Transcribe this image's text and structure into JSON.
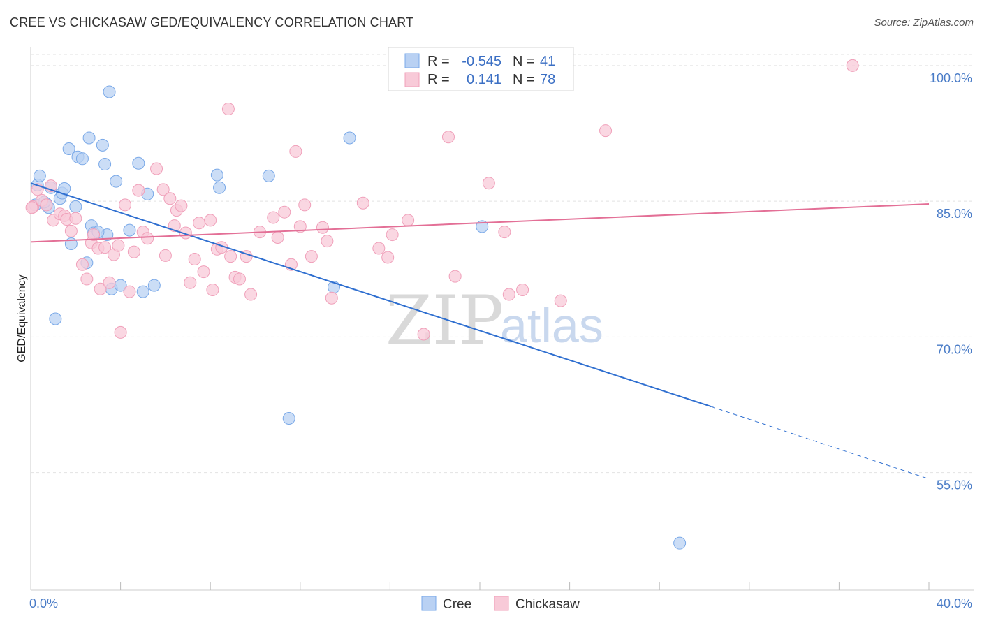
{
  "title": "CREE VS CHICKASAW GED/EQUIVALENCY CORRELATION CHART",
  "source": "Source: ZipAtlas.com",
  "chart_data": {
    "type": "scatter",
    "ylabel": "GED/Equivalency",
    "xlim": [
      0,
      40
    ],
    "ylim": [
      42,
      102
    ],
    "y_ticks": [
      {
        "value": 100,
        "label": "100.0%"
      },
      {
        "value": 85,
        "label": "85.0%"
      },
      {
        "value": 70,
        "label": "70.0%"
      },
      {
        "value": 55,
        "label": "55.0%"
      }
    ],
    "x_tick_labels": {
      "min": "0.0%",
      "max": "40.0%"
    },
    "legend": {
      "r_label": "R =",
      "n_label": "N =",
      "entries": [
        {
          "series": "Cree",
          "r": "-0.545",
          "n": "41"
        },
        {
          "series": "Chickasaw",
          "r": "0.141",
          "n": "78"
        }
      ]
    },
    "watermark": {
      "zip": "ZIP",
      "atlas": "atlas"
    },
    "series": [
      {
        "name": "Cree",
        "color": "#7aa9e8",
        "fill": "#b9d1f3",
        "line_color": "#2f6fd0",
        "trend": {
          "x0": 0,
          "y0": 87.0,
          "x1": 30.3,
          "y1": 62.3,
          "x_dash_end": 40,
          "y_dash_end": 54.3
        },
        "points": [
          [
            0.3,
            86.8
          ],
          [
            0.4,
            87.8
          ],
          [
            0.7,
            84.7
          ],
          [
            0.8,
            84.3
          ],
          [
            0.9,
            86.5
          ],
          [
            1.1,
            72.0
          ],
          [
            1.3,
            85.3
          ],
          [
            1.4,
            85.9
          ],
          [
            1.5,
            86.4
          ],
          [
            1.7,
            90.8
          ],
          [
            1.8,
            80.3
          ],
          [
            2.0,
            84.4
          ],
          [
            2.1,
            89.9
          ],
          [
            2.3,
            89.7
          ],
          [
            2.5,
            78.2
          ],
          [
            2.6,
            92.0
          ],
          [
            2.7,
            82.3
          ],
          [
            2.8,
            81.5
          ],
          [
            3.2,
            91.2
          ],
          [
            3.3,
            89.1
          ],
          [
            3.4,
            81.3
          ],
          [
            3.5,
            97.1
          ],
          [
            3.6,
            75.3
          ],
          [
            3.8,
            87.2
          ],
          [
            4.0,
            75.7
          ],
          [
            4.4,
            81.8
          ],
          [
            4.8,
            89.2
          ],
          [
            5.0,
            75.0
          ],
          [
            5.2,
            85.8
          ],
          [
            5.5,
            75.7
          ],
          [
            8.3,
            87.9
          ],
          [
            8.4,
            86.5
          ],
          [
            10.6,
            87.8
          ],
          [
            11.5,
            61.0
          ],
          [
            13.5,
            75.5
          ],
          [
            14.2,
            92.0
          ],
          [
            20.1,
            82.2
          ],
          [
            28.9,
            47.2
          ],
          [
            0.2,
            84.6
          ],
          [
            0.6,
            84.9
          ],
          [
            3.0,
            81.6
          ]
        ]
      },
      {
        "name": "Chickasaw",
        "color": "#f0a0ba",
        "fill": "#f8cad8",
        "line_color": "#e36f96",
        "trend": {
          "x0": 0,
          "y0": 80.5,
          "x1": 40,
          "y1": 84.7
        },
        "points": [
          [
            0.1,
            84.4
          ],
          [
            0.3,
            86.3
          ],
          [
            0.5,
            85.1
          ],
          [
            0.7,
            84.6
          ],
          [
            0.9,
            86.7
          ],
          [
            1.0,
            82.9
          ],
          [
            1.3,
            83.6
          ],
          [
            1.5,
            83.4
          ],
          [
            1.6,
            83.0
          ],
          [
            1.8,
            81.7
          ],
          [
            2.0,
            83.1
          ],
          [
            2.3,
            78.0
          ],
          [
            2.5,
            76.4
          ],
          [
            2.7,
            80.4
          ],
          [
            2.8,
            81.3
          ],
          [
            3.0,
            79.8
          ],
          [
            3.1,
            75.3
          ],
          [
            3.3,
            79.9
          ],
          [
            3.5,
            76.0
          ],
          [
            3.7,
            79.1
          ],
          [
            3.9,
            80.1
          ],
          [
            4.0,
            70.5
          ],
          [
            4.2,
            84.6
          ],
          [
            4.4,
            75.0
          ],
          [
            4.6,
            79.4
          ],
          [
            4.8,
            86.2
          ],
          [
            5.0,
            81.6
          ],
          [
            5.2,
            80.9
          ],
          [
            5.6,
            88.6
          ],
          [
            5.9,
            86.3
          ],
          [
            6.0,
            79.0
          ],
          [
            6.2,
            85.3
          ],
          [
            6.4,
            82.3
          ],
          [
            6.5,
            84.0
          ],
          [
            6.7,
            84.5
          ],
          [
            6.9,
            81.5
          ],
          [
            7.1,
            76.0
          ],
          [
            7.3,
            78.6
          ],
          [
            7.5,
            82.6
          ],
          [
            7.7,
            77.2
          ],
          [
            8.0,
            82.9
          ],
          [
            8.1,
            75.2
          ],
          [
            8.3,
            79.7
          ],
          [
            8.5,
            79.9
          ],
          [
            8.8,
            95.2
          ],
          [
            8.9,
            78.9
          ],
          [
            9.1,
            76.6
          ],
          [
            9.3,
            76.4
          ],
          [
            9.6,
            78.9
          ],
          [
            9.8,
            74.7
          ],
          [
            10.2,
            81.6
          ],
          [
            10.8,
            83.2
          ],
          [
            11.0,
            81.0
          ],
          [
            11.3,
            83.8
          ],
          [
            11.6,
            78.0
          ],
          [
            11.8,
            90.5
          ],
          [
            12.0,
            82.2
          ],
          [
            12.2,
            84.6
          ],
          [
            12.5,
            78.9
          ],
          [
            13.0,
            82.1
          ],
          [
            13.2,
            80.6
          ],
          [
            13.4,
            74.3
          ],
          [
            14.8,
            84.8
          ],
          [
            15.5,
            79.8
          ],
          [
            15.9,
            78.8
          ],
          [
            16.1,
            81.3
          ],
          [
            16.8,
            82.9
          ],
          [
            17.5,
            70.3
          ],
          [
            18.6,
            92.1
          ],
          [
            18.9,
            76.7
          ],
          [
            20.4,
            87.0
          ],
          [
            21.1,
            81.6
          ],
          [
            21.3,
            74.7
          ],
          [
            21.9,
            75.2
          ],
          [
            23.6,
            74.0
          ],
          [
            25.6,
            92.8
          ],
          [
            36.6,
            100.0
          ],
          [
            0.05,
            84.3
          ]
        ]
      }
    ]
  }
}
